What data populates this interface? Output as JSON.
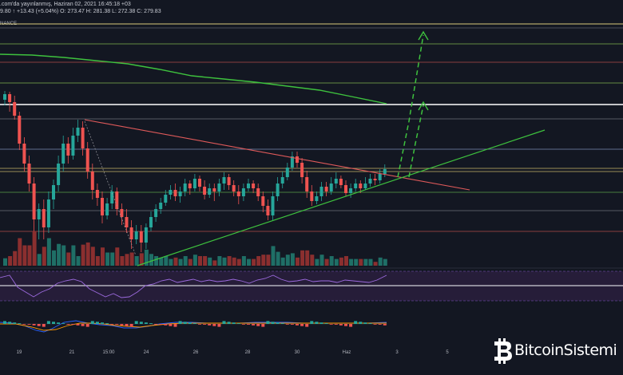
{
  "header": {
    "published": ".com'da yayınlanmış, Haziran 02, 2021 16:45:18 +03",
    "ohlc": "9.80 ↑ +13.43 (+5.04%) O: 273.47 H: 281.38 L: 272.38 C: 279.83",
    "source": "NANCE"
  },
  "xaxis": {
    "labels": [
      "19",
      "21",
      "15:00",
      "24",
      "26",
      "28",
      "30",
      "Haz",
      "3",
      "5"
    ]
  },
  "logo": {
    "text": "BitcoinSistemi"
  },
  "colors": {
    "background": "#131722",
    "up": "#26a69a",
    "down": "#ef5350",
    "ma": "#3ec23e",
    "trend_up": "#3ec23e",
    "trend_down": "#e05a5a",
    "projection": "#3ec23e"
  }
}
